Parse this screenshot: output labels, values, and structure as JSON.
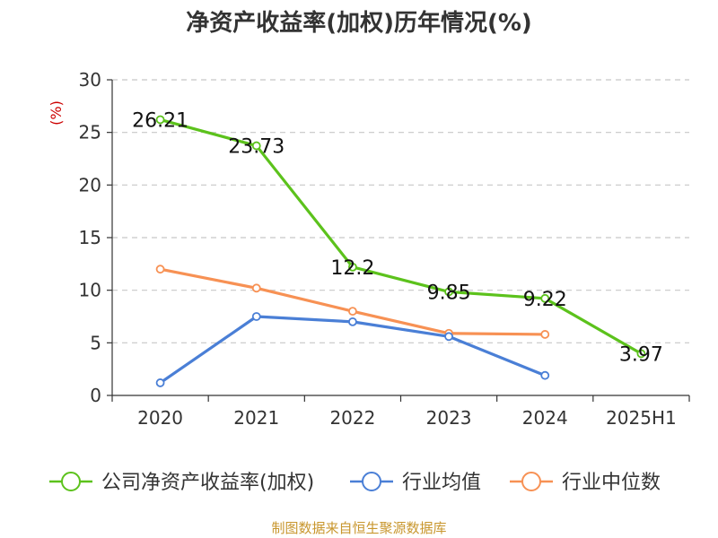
{
  "chart_data": {
    "type": "line",
    "title": "净资产收益率(加权)历年情况(%)",
    "y_unit": "(%)",
    "categories": [
      "2020",
      "2021",
      "2022",
      "2023",
      "2024",
      "2025H1"
    ],
    "ylim": [
      0,
      30
    ],
    "yticks": [
      0,
      5,
      10,
      15,
      20,
      25,
      30
    ],
    "grid": true,
    "legend_position": "bottom",
    "series": [
      {
        "name": "公司净资产收益率(加权)",
        "color": "#5cc21c",
        "values": [
          26.21,
          23.73,
          12.2,
          9.85,
          9.22,
          3.97
        ],
        "data_labels": [
          "26.21",
          "23.73",
          "12.2",
          "9.85",
          "9.22",
          "3.97"
        ]
      },
      {
        "name": "行业均值",
        "color": "#4a7fd6",
        "values": [
          1.2,
          7.5,
          7.0,
          5.6,
          1.9,
          null
        ]
      },
      {
        "name": "行业中位数",
        "color": "#f79154",
        "values": [
          12.0,
          10.2,
          8.0,
          5.9,
          5.8,
          null
        ]
      }
    ],
    "source": "制图数据来自恒生聚源数据库",
    "source_color": "#c8962d"
  }
}
